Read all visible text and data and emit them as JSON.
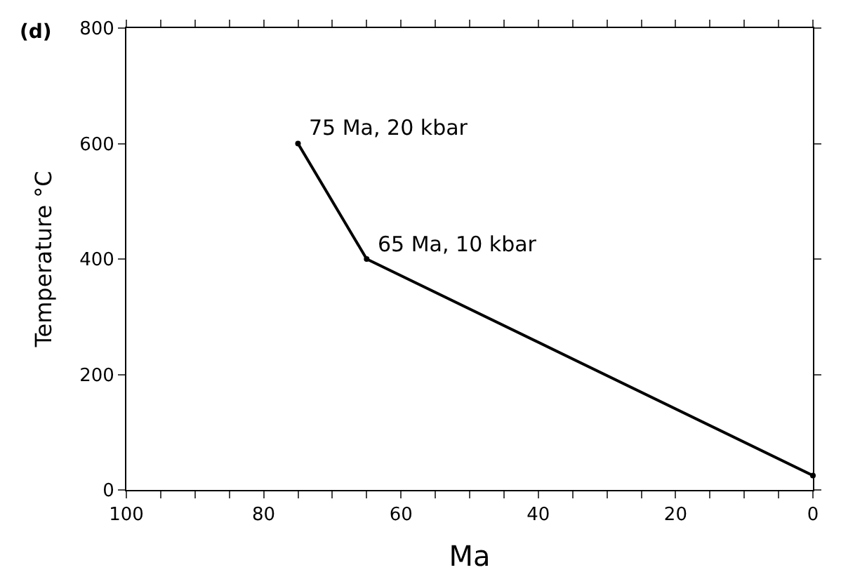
{
  "chart_data": {
    "type": "line",
    "xlabel": "Ma",
    "ylabel": "Temperature °C",
    "x": [
      75,
      65,
      0
    ],
    "series": [
      {
        "color": "#000000",
        "values": [
          600,
          400,
          25
        ]
      }
    ],
    "xlim": [
      100,
      0
    ],
    "ylim": [
      0,
      800
    ],
    "xticks": [
      100,
      {
        "value": 95,
        "label": null
      },
      {
        "value": 90,
        "label": null
      },
      {
        "value": 85,
        "label": null
      },
      80,
      {
        "value": 75,
        "label": null
      },
      {
        "value": 70,
        "label": null
      },
      {
        "value": 65,
        "label": null
      },
      60,
      {
        "value": 55,
        "label": null
      },
      {
        "value": 50,
        "label": null
      },
      {
        "value": 45,
        "label": null
      },
      40,
      {
        "value": 35,
        "label": null
      },
      {
        "value": 30,
        "label": null
      },
      {
        "value": 25,
        "label": null
      },
      20,
      {
        "value": 15,
        "label": null
      },
      {
        "value": 10,
        "label": null
      },
      {
        "value": 5,
        "label": null
      },
      0
    ],
    "yticks": [
      0,
      200,
      400,
      600,
      800
    ],
    "annotations": [
      "(d)",
      {
        "text": "75 Ma, 20 kbar",
        "x": 75,
        "y": 600
      },
      {
        "text": "65 Ma, 10 kbar",
        "x": 65,
        "y": 400
      }
    ],
    "marker": "circle",
    "line_style": "solid",
    "legend": false
  }
}
